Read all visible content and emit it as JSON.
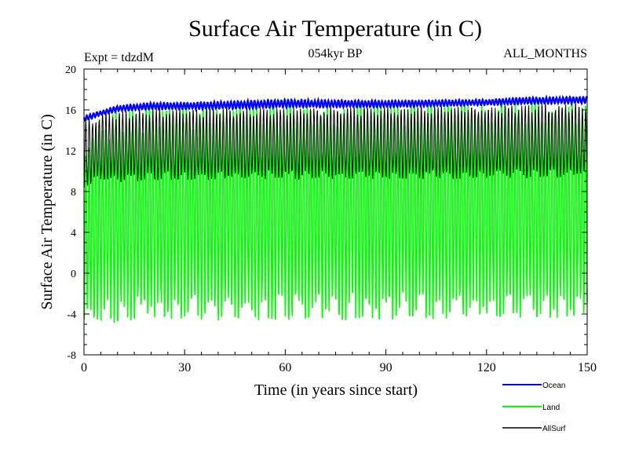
{
  "chart_data": {
    "type": "line",
    "title": "Surface Air Temperature (in C)",
    "subtitle_left": "Expt = tdzdM",
    "subtitle_center": "054kyr BP",
    "subtitle_right": "ALL_MONTHS",
    "xlabel": "Time (in years since start)",
    "ylabel": "Surface Air Temperature (in C)",
    "xlim": [
      0,
      150
    ],
    "ylim": [
      -8,
      20
    ],
    "x_ticks": [
      0,
      30,
      60,
      90,
      120,
      150
    ],
    "y_ticks": [
      -8,
      -4,
      0,
      4,
      8,
      12,
      16,
      20
    ],
    "x_tick_labels": [
      "0",
      "30",
      "60",
      "90",
      "120",
      "150"
    ],
    "y_tick_labels": [
      "-8",
      "-4",
      "0",
      "4",
      "8",
      "12",
      "16",
      "20"
    ],
    "grid": false,
    "legend_position": "bottom-right, below plot",
    "sampling": "monthly, annual seasonal cycle over 150 years",
    "series": [
      {
        "name": "Ocean",
        "color": "#0000ff",
        "description": "monthly values, seasonal cycle ~15.8-16.6 C, rising slowly",
        "trend_points": {
          "x": [
            0,
            5,
            10,
            20,
            30,
            50,
            60,
            90,
            120,
            130,
            150
          ],
          "min": [
            14.9,
            15.5,
            15.9,
            16.1,
            16.1,
            16.2,
            16.3,
            16.3,
            16.5,
            16.6,
            16.7
          ],
          "max": [
            15.4,
            15.9,
            16.4,
            16.7,
            16.7,
            16.9,
            17.0,
            16.9,
            17.0,
            17.2,
            17.3
          ]
        }
      },
      {
        "name": "Land",
        "color": "#00ff00",
        "description": "monthly values, large seasonal cycle",
        "trend_points": {
          "x": [
            0,
            5,
            20,
            60,
            120,
            150
          ],
          "min": [
            -3.8,
            -3.2,
            -2.7,
            -2.7,
            -2.6,
            -2.4
          ],
          "max": [
            12.5,
            15.0,
            16.3,
            16.4,
            16.5,
            16.7
          ]
        }
      },
      {
        "name": "AllSurf",
        "color": "#000000",
        "description": "monthly values, moderate seasonal cycle",
        "trend_points": {
          "x": [
            0,
            5,
            20,
            60,
            120,
            150
          ],
          "min": [
            9.0,
            9.4,
            9.7,
            9.8,
            9.9,
            10.0
          ],
          "max": [
            14.8,
            15.6,
            16.0,
            16.1,
            16.3,
            16.5
          ]
        }
      }
    ]
  }
}
